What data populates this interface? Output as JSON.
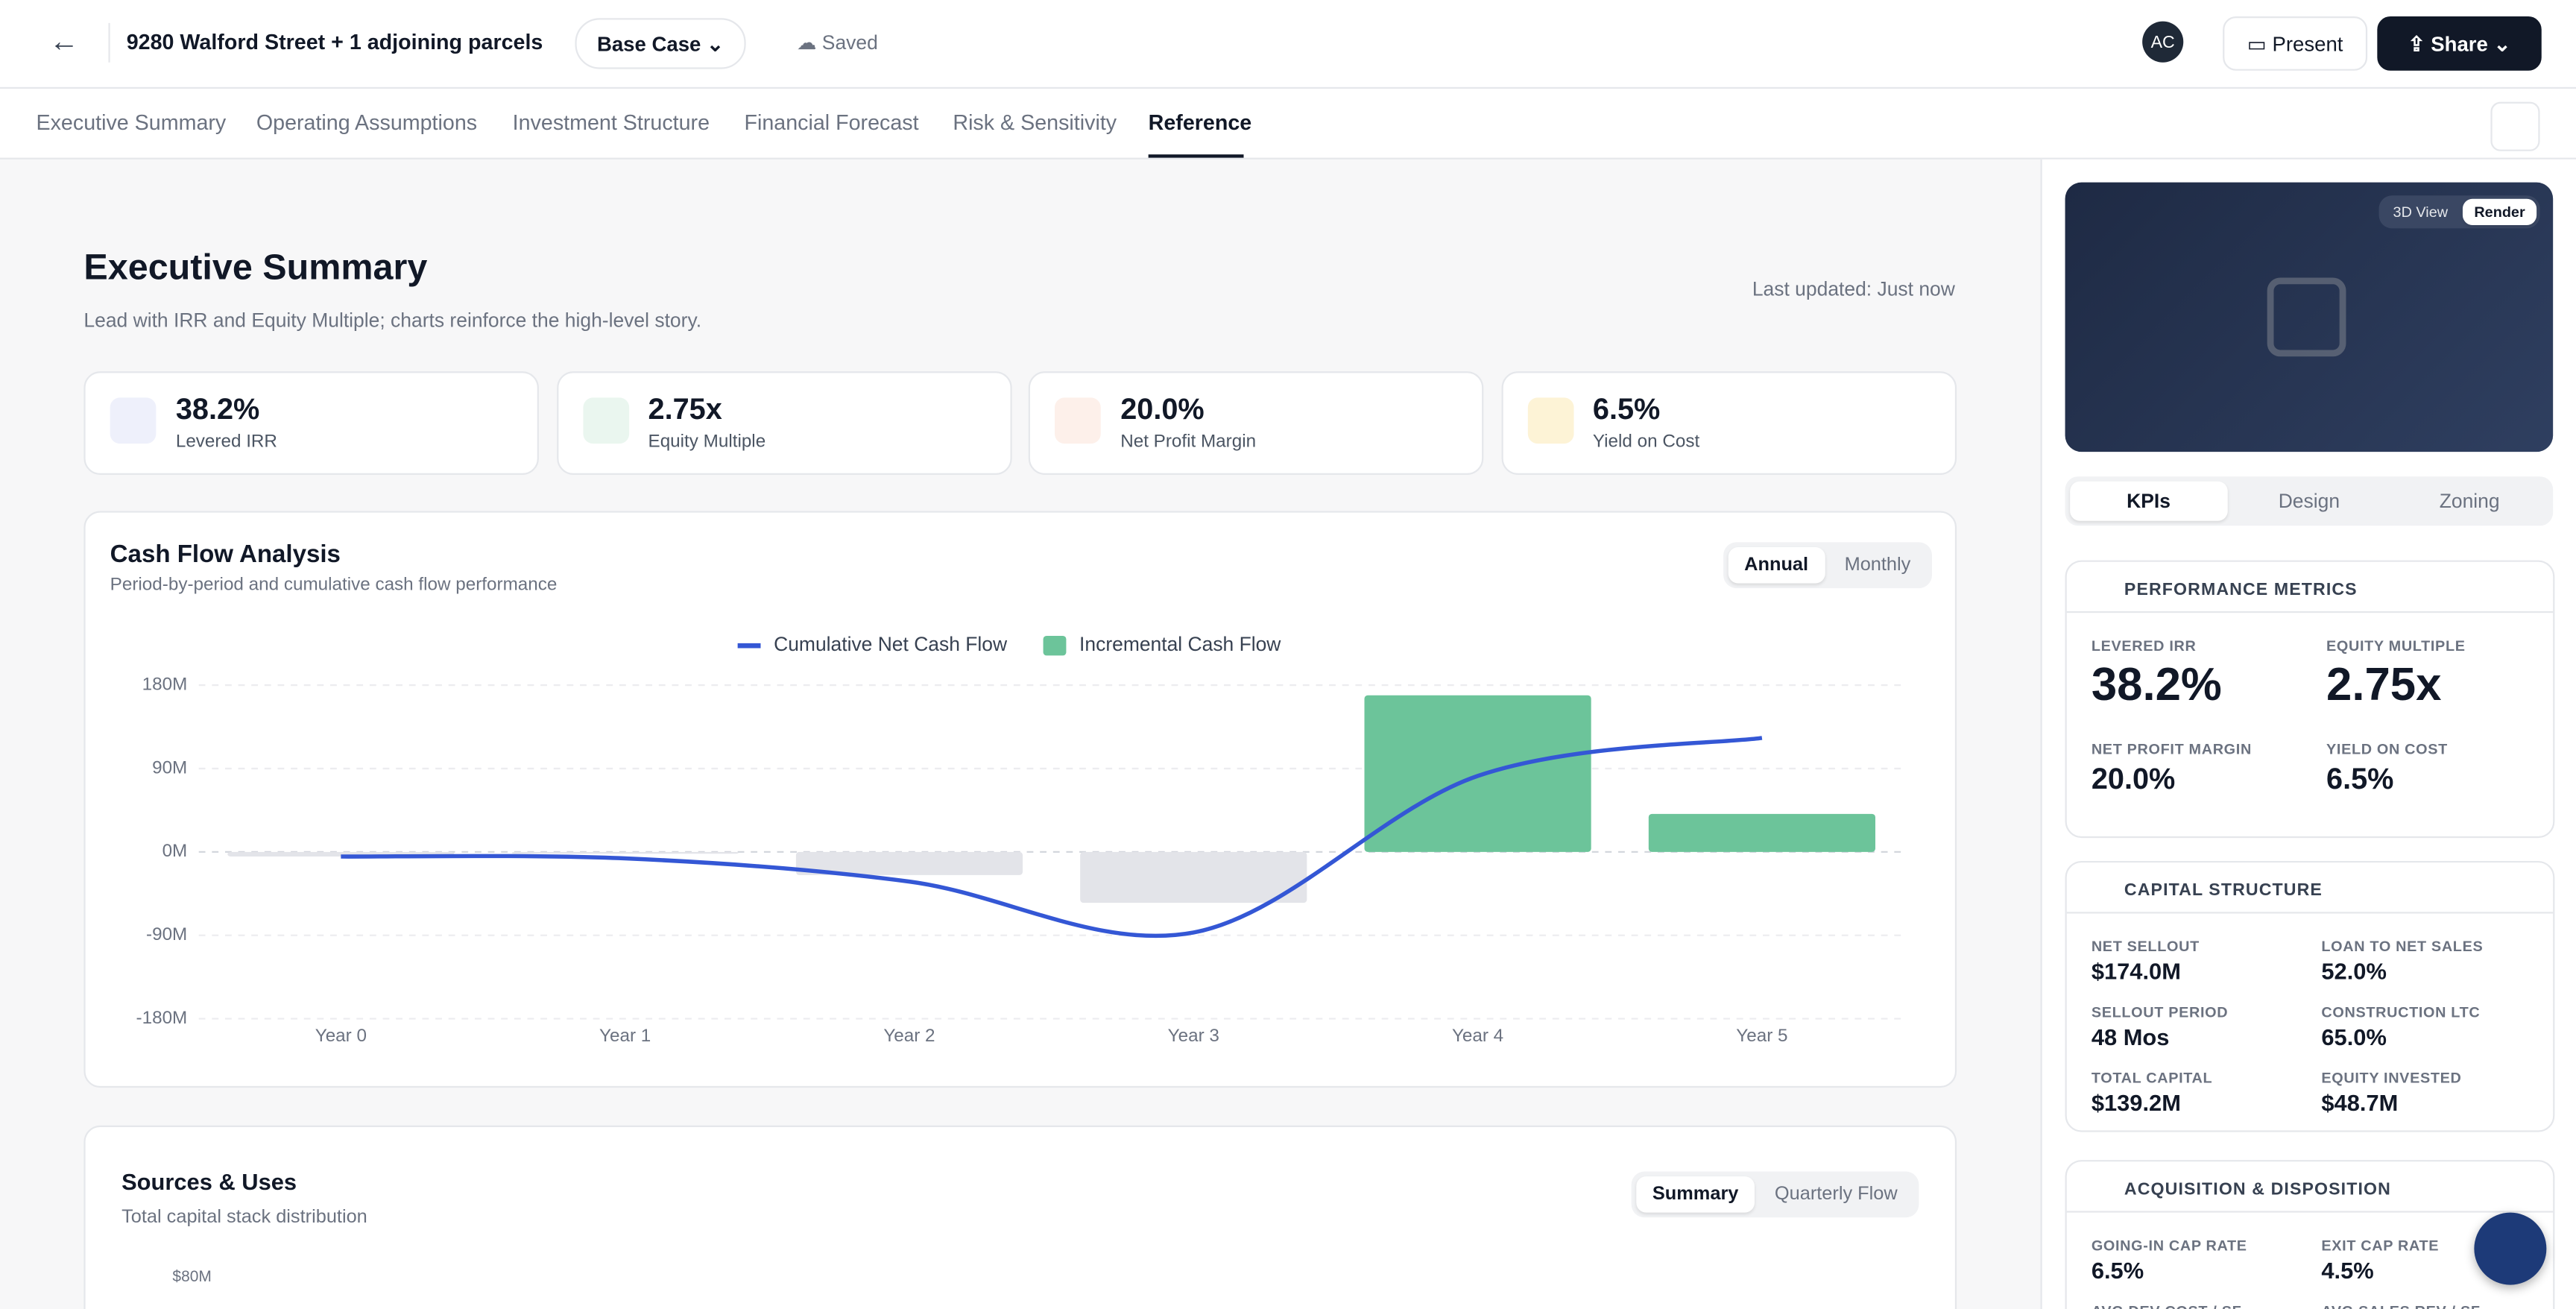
{
  "header": {
    "title": "9280 Walford Street + 1 adjoining parcels",
    "scenario": "Base Case",
    "status": "Saved",
    "avatar": "AC",
    "present": "Present",
    "share": "Share"
  },
  "tabs": [
    "Executive Summary",
    "Operating Assumptions",
    "Investment Structure",
    "Financial Forecast",
    "Risk & Sensitivity",
    "Reference"
  ],
  "page": {
    "title": "Executive Summary",
    "subtitle": "Lead with IRR and Equity Multiple; charts reinforce the high-level story.",
    "updated": "Last updated: Just now"
  },
  "kpis": [
    {
      "value": "38.2%",
      "label": "Levered IRR"
    },
    {
      "value": "2.75x",
      "label": "Equity Multiple"
    },
    {
      "value": "20.0%",
      "label": "Net Profit Margin"
    },
    {
      "value": "6.5%",
      "label": "Yield on Cost"
    }
  ],
  "cash_flow": {
    "title": "Cash Flow Analysis",
    "subtitle": "Period-by-period and cumulative cash flow performance",
    "toggle": [
      "Annual",
      "Monthly"
    ]
  },
  "chart_data": {
    "type": "combo",
    "categories": [
      "Year 0",
      "Year 1",
      "Year 2",
      "Year 3",
      "Year 4",
      "Year 5"
    ],
    "series": [
      {
        "name": "Cumulative Net Cash Flow",
        "type": "line",
        "color": "#3457d5",
        "values": [
          -5,
          -7,
          -32,
          -87,
          82,
          123
        ]
      },
      {
        "name": "Incremental Cash Flow",
        "type": "bar",
        "color": "#6cc49a",
        "negative_color": "#e3e4e9",
        "values": [
          -5,
          -2,
          -25,
          -55,
          169,
          41
        ]
      }
    ],
    "ylim": [
      -180,
      180
    ],
    "yticks": [
      {
        "value": -180,
        "label": "-180M"
      },
      {
        "value": -90,
        "label": "-90M"
      },
      {
        "value": 0,
        "label": "0M"
      },
      {
        "value": 90,
        "label": "90M"
      },
      {
        "value": 180,
        "label": "180M"
      }
    ],
    "grid": true,
    "legend": "top"
  },
  "sources_uses": {
    "title": "Sources & Uses",
    "subtitle": "Total capital stack distribution",
    "toggle": [
      "Summary",
      "Quarterly Flow"
    ],
    "axis_label": "$80M"
  },
  "sidebar": {
    "view_toggle": [
      "3D View",
      "Render"
    ],
    "tabs": [
      "KPIs",
      "Design",
      "Zoning"
    ],
    "performance": {
      "title": "PERFORMANCE METRICS",
      "metrics": [
        {
          "label": "LEVERED IRR",
          "value": "38.2%"
        },
        {
          "label": "EQUITY MULTIPLE",
          "value": "2.75x"
        },
        {
          "label": "NET PROFIT MARGIN",
          "value": "20.0%"
        },
        {
          "label": "YIELD ON COST",
          "value": "6.5%"
        }
      ]
    },
    "capital": {
      "title": "CAPITAL STRUCTURE",
      "metrics": [
        {
          "label": "NET SELLOUT",
          "value": "$174.0M"
        },
        {
          "label": "LOAN TO NET SALES",
          "value": "52.0%"
        },
        {
          "label": "SELLOUT PERIOD",
          "value": "48 Mos"
        },
        {
          "label": "CONSTRUCTION LTC",
          "value": "65.0%"
        },
        {
          "label": "TOTAL CAPITAL",
          "value": "$139.2M"
        },
        {
          "label": "EQUITY INVESTED",
          "value": "$48.7M"
        }
      ]
    },
    "acquisition": {
      "title": "ACQUISITION & DISPOSITION",
      "metrics": [
        {
          "label": "GOING-IN CAP RATE",
          "value": "6.5%"
        },
        {
          "label": "EXIT CAP RATE",
          "value": "4.5%"
        },
        {
          "label": "AVG DEV COST / SF"
        },
        {
          "label": "AVG SALES REV / SF"
        }
      ]
    }
  }
}
